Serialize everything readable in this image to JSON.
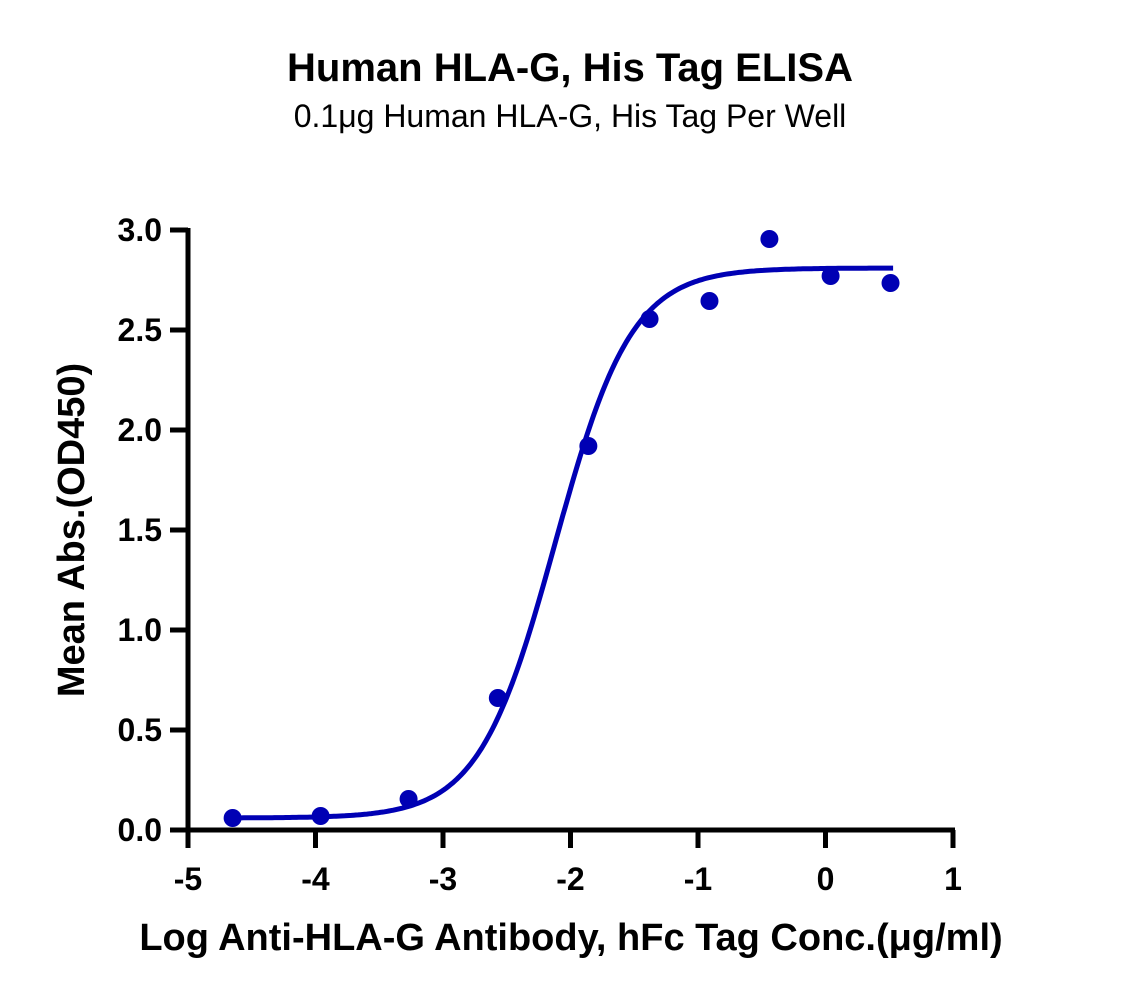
{
  "chart_data": {
    "type": "scatter",
    "title": "Human HLA-G, His Tag ELISA",
    "subtitle": "0.1μg Human HLA-G, His Tag Per Well",
    "xlabel": "Log Anti-HLA-G Antibody, hFc Tag Conc.(μg/ml)",
    "ylabel": "Mean Abs.(OD450)",
    "xlim": [
      -5,
      1
    ],
    "ylim": [
      0,
      3.0
    ],
    "x_ticks": [
      -5,
      -4,
      -3,
      -2,
      -1,
      0,
      1
    ],
    "x_tick_labels": [
      "-5",
      "-4",
      "-3",
      "-2",
      "-1",
      "0",
      "1"
    ],
    "y_ticks": [
      0,
      0.5,
      1.0,
      1.5,
      2.0,
      2.5,
      3.0
    ],
    "y_tick_labels": [
      "0.0",
      "0.5",
      "1.0",
      "1.5",
      "2.0",
      "2.5",
      "3.0"
    ],
    "grid": false,
    "legend": null,
    "series": [
      {
        "name": "Mean Abs.(OD450)",
        "type": "scatter",
        "color": "#0000b4",
        "x": [
          -4.65,
          -3.96,
          -3.27,
          -2.57,
          -1.86,
          -1.38,
          -0.91,
          -0.44,
          0.04,
          0.51
        ],
        "y": [
          0.06,
          0.07,
          0.155,
          0.66,
          1.92,
          2.555,
          2.645,
          2.955,
          2.77,
          2.735
        ]
      },
      {
        "name": "4PL fit",
        "type": "line",
        "color": "#0000b4",
        "fit": {
          "bottom": 0.06,
          "top": 2.81,
          "logEC50": -2.12,
          "hill": 1.45
        },
        "x_range": [
          -4.65,
          0.53
        ]
      }
    ]
  }
}
